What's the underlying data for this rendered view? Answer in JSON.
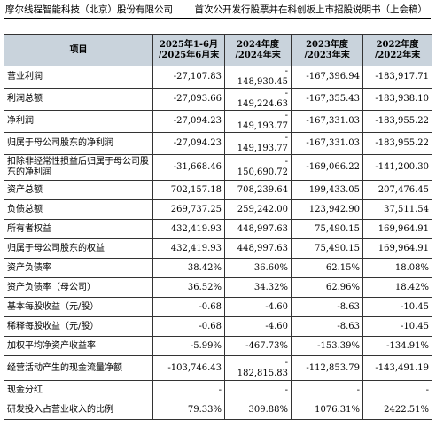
{
  "header": {
    "company": "摩尔线程智能科技（北京）股份有限公司",
    "doc_title": "首次公开发行股票并在科创板上市招股说明书（上会稿）"
  },
  "table": {
    "headers": [
      "项目",
      "2025年1-6月\n/2025年6月末",
      "2024年度\n/2024年末",
      "2023年度\n/2023年末",
      "2022年度\n/2022年末"
    ],
    "rows": [
      {
        "item": "营业利润",
        "v": [
          "-27,107.83",
          "-\n148,930.45",
          "-167,396.94",
          "-183,917.71"
        ]
      },
      {
        "item": "利润总额",
        "v": [
          "-27,093.66",
          "-\n149,224.63",
          "-167,355.43",
          "-183,938.10"
        ]
      },
      {
        "item": "净利润",
        "v": [
          "-27,094.23",
          "-\n149,193.77",
          "-167,331.03",
          "-183,955.22"
        ]
      },
      {
        "item": "归属于母公司股东的净利润",
        "v": [
          "-27,094.23",
          "-\n149,193.77",
          "-167,331.03",
          "-183,955.22"
        ]
      },
      {
        "item": "扣除非经常性损益后归属于母公司股东的净利润",
        "v": [
          "-31,668.46",
          "-\n150,690.72",
          "-169,066.22",
          "-141,200.30"
        ]
      },
      {
        "item": "资产总额",
        "v": [
          "702,157.18",
          "708,239.64",
          "199,433.05",
          "207,476.45"
        ]
      },
      {
        "item": "负债总额",
        "v": [
          "269,737.25",
          "259,242.00",
          "123,942.90",
          "37,511.54"
        ]
      },
      {
        "item": "所有者权益",
        "v": [
          "432,419.93",
          "448,997.63",
          "75,490.15",
          "169,964.91"
        ]
      },
      {
        "item": "归属于母公司股东的权益",
        "v": [
          "432,419.93",
          "448,997.63",
          "75,490.15",
          "169,964.91"
        ]
      },
      {
        "item": "资产负债率",
        "v": [
          "38.42%",
          "36.60%",
          "62.15%",
          "18.08%"
        ]
      },
      {
        "item": "资产负债率（母公司）",
        "v": [
          "36.52%",
          "34.32%",
          "62.96%",
          "18.42%"
        ]
      },
      {
        "item": "基本每股收益（元/股）",
        "v": [
          "-0.68",
          "-4.60",
          "-8.63",
          "-10.45"
        ]
      },
      {
        "item": "稀释每股收益（元/股）",
        "v": [
          "-0.68",
          "-4.60",
          "-8.63",
          "-10.45"
        ]
      },
      {
        "item": "加权平均净资产收益率",
        "v": [
          "-5.99%",
          "-467.73%",
          "-153.39%",
          "-134.91%"
        ]
      },
      {
        "item": "经营活动产生的现金流量净额",
        "v": [
          "-103,746.43",
          "-\n182,815.83",
          "-112,853.79",
          "-143,491.19"
        ]
      },
      {
        "item": "现金分红",
        "v": [
          "-",
          "-",
          "-",
          "-"
        ]
      },
      {
        "item": "研发投入占营业收入的比例",
        "v": [
          "79.33%",
          "309.88%",
          "1076.31%",
          "2422.51%"
        ]
      }
    ]
  }
}
